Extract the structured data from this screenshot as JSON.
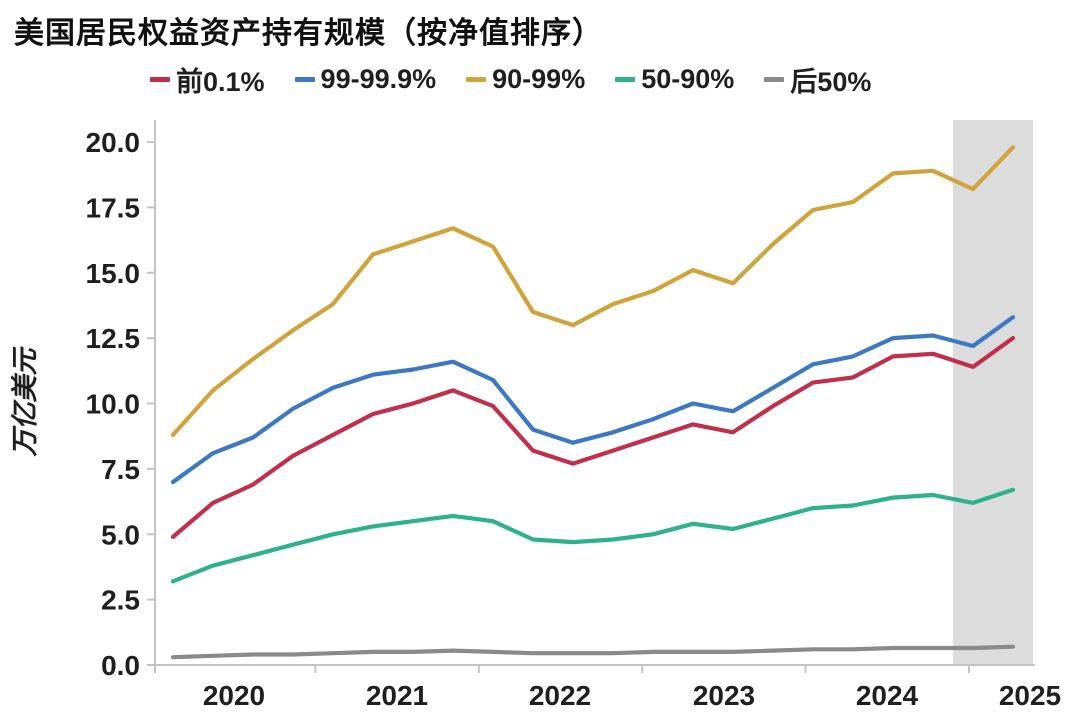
{
  "title": "美国居民权益资产持有规模（按净值排序）",
  "colors": {
    "red": "#c1304a",
    "blue": "#3d78c3",
    "gold": "#d1a33b",
    "teal": "#2db28c",
    "gray": "#8a8a8a",
    "shade": "#dcdcdc",
    "axis": "#c4c4c4",
    "text": "#1f1f1f"
  },
  "legend": [
    {
      "label": "前0.1%",
      "color": "#c1304a"
    },
    {
      "label": "99-99.9%",
      "color": "#3d78c3"
    },
    {
      "label": "90-99%",
      "color": "#d1a33b"
    },
    {
      "label": "50-90%",
      "color": "#2db28c"
    },
    {
      "label": "后50%",
      "color": "#8a8a8a"
    }
  ],
  "y_axis": {
    "label": "万亿美元",
    "ticks": [
      "20.0",
      "17.5",
      "15.0",
      "12.5",
      "10.0",
      "7.5",
      "5.0",
      "2.5",
      "0.0"
    ]
  },
  "x_axis": {
    "ticks": [
      "2020",
      "2021",
      "2022",
      "2023",
      "2024",
      "2025"
    ]
  },
  "chart_data": {
    "type": "line",
    "title": "美国居民权益资产持有规模（按净值排序）",
    "xlabel": "",
    "ylabel": "万亿美元",
    "ylim": [
      0,
      20.8
    ],
    "grid": false,
    "legend_position": "top",
    "x_tick_labels": [
      "2020",
      "2021",
      "2022",
      "2023",
      "2024",
      "2025"
    ],
    "categories": [
      "2020Q1",
      "2020Q2",
      "2020Q3",
      "2020Q4",
      "2021Q1",
      "2021Q2",
      "2021Q3",
      "2021Q4",
      "2022Q1",
      "2022Q2",
      "2022Q3",
      "2022Q4",
      "2023Q1",
      "2023Q2",
      "2023Q3",
      "2023Q4",
      "2024Q1",
      "2024Q2",
      "2024Q3",
      "2024Q4",
      "2025Q1",
      "2025Q2"
    ],
    "series": [
      {
        "key": "top01",
        "name": "前0.1%",
        "color": "#c1304a",
        "values": [
          4.9,
          6.2,
          6.9,
          8.0,
          8.8,
          9.6,
          10.0,
          10.5,
          9.9,
          8.2,
          7.7,
          8.2,
          8.7,
          9.2,
          8.9,
          9.9,
          10.8,
          11.0,
          11.8,
          11.9,
          11.4,
          12.5
        ]
      },
      {
        "key": "p99_999",
        "name": "99-99.9%",
        "color": "#3d78c3",
        "values": [
          7.0,
          8.1,
          8.7,
          9.8,
          10.6,
          11.1,
          11.3,
          11.6,
          10.9,
          9.0,
          8.5,
          8.9,
          9.4,
          10.0,
          9.7,
          10.6,
          11.5,
          11.8,
          12.5,
          12.6,
          12.2,
          13.3
        ]
      },
      {
        "key": "p90_99",
        "name": "90-99%",
        "color": "#d1a33b",
        "values": [
          8.8,
          10.5,
          11.7,
          12.8,
          13.8,
          15.7,
          16.2,
          16.7,
          16.0,
          13.5,
          13.0,
          13.8,
          14.3,
          15.1,
          14.6,
          16.1,
          17.4,
          17.7,
          18.8,
          18.9,
          18.2,
          19.8
        ]
      },
      {
        "key": "p50_90",
        "name": "50-90%",
        "color": "#2db28c",
        "values": [
          3.2,
          3.8,
          4.2,
          4.6,
          5.0,
          5.3,
          5.5,
          5.7,
          5.5,
          4.8,
          4.7,
          4.8,
          5.0,
          5.4,
          5.2,
          5.6,
          6.0,
          6.1,
          6.4,
          6.5,
          6.2,
          6.7
        ]
      },
      {
        "key": "bottom50",
        "name": "后50%",
        "color": "#8a8a8a",
        "values": [
          0.3,
          0.35,
          0.4,
          0.4,
          0.45,
          0.5,
          0.5,
          0.55,
          0.5,
          0.45,
          0.45,
          0.45,
          0.5,
          0.5,
          0.5,
          0.55,
          0.6,
          0.6,
          0.65,
          0.65,
          0.65,
          0.7
        ]
      }
    ],
    "shaded_region": {
      "from": "2025Q1",
      "to": "2025Q2",
      "color": "#dcdcdc"
    }
  }
}
